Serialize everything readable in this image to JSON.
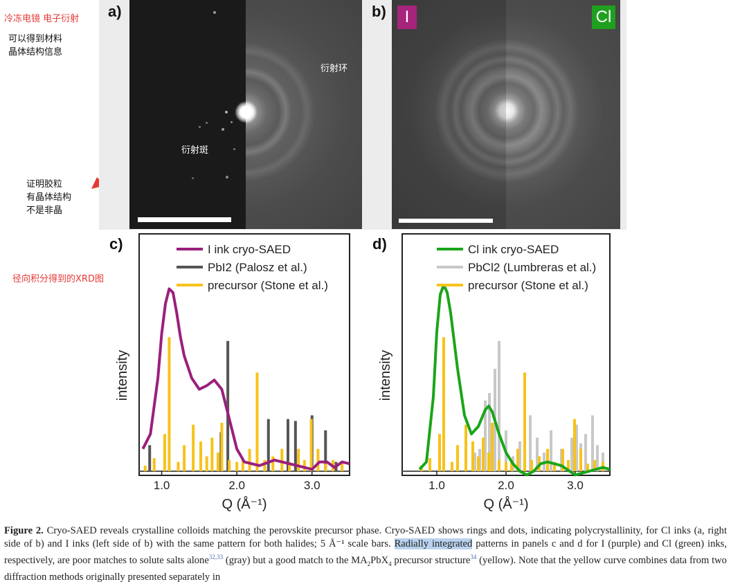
{
  "notes": {
    "cryo_title": "冷冻电镜 电子衍射",
    "crystal_info": [
      "可以得到材料",
      "晶体结构信息"
    ],
    "proof": [
      "证明胶粒",
      "有晶体结构",
      "不是非晶"
    ],
    "xrd_note": "径向积分得到的XRD图",
    "spots_label": "衍射斑",
    "rings_label": "衍射环"
  },
  "panels": {
    "a": "a)",
    "b": "b)",
    "c": "c)",
    "d": "d)",
    "b_badge_left": "I",
    "b_badge_right": "Cl"
  },
  "colors": {
    "purple": "#9b1f7c",
    "green": "#1aa51a",
    "yellow": "#f7c21a",
    "dark_gray": "#555555",
    "light_gray": "#c8c8c8",
    "badge_i": "#a7247c",
    "badge_cl": "#1fa01f",
    "annotation_red": "#e53935"
  },
  "chart_data": [
    {
      "type": "line",
      "panel": "c",
      "xlabel": "Q (Å⁻¹)",
      "ylabel": "intensity",
      "xlim": [
        0.7,
        3.5
      ],
      "ylim": [
        0,
        1
      ],
      "xticks": [
        "1.0",
        "2.0",
        "3.0"
      ],
      "legend_position": "top-right",
      "legend": [
        {
          "label": "I ink cryo-SAED",
          "color": "#9b1f7c"
        },
        {
          "label": "PbI2 (Palosz et al.)",
          "color": "#555555"
        },
        {
          "label": "precursor (Stone et al.)",
          "color": "#f7c21a"
        }
      ],
      "series": [
        {
          "name": "I ink cryo-SAED",
          "kind": "curve",
          "x": [
            0.75,
            0.85,
            0.95,
            1.0,
            1.05,
            1.1,
            1.15,
            1.2,
            1.25,
            1.3,
            1.4,
            1.5,
            1.6,
            1.7,
            1.8,
            1.9,
            2.0,
            2.1,
            2.3,
            2.5,
            2.7,
            2.9,
            3.0,
            3.1,
            3.2,
            3.3,
            3.4,
            3.5
          ],
          "y": [
            0.12,
            0.2,
            0.5,
            0.74,
            0.9,
            0.98,
            0.96,
            0.85,
            0.72,
            0.62,
            0.5,
            0.44,
            0.46,
            0.49,
            0.44,
            0.28,
            0.12,
            0.05,
            0.03,
            0.06,
            0.04,
            0.02,
            0.01,
            0.05,
            0.05,
            0.02,
            0.05,
            0.04
          ]
        },
        {
          "name": "PbI2 (Palosz et al.)",
          "kind": "sticks",
          "x": [
            0.84,
            1.79,
            1.88,
            2.42,
            2.68,
            2.78,
            3.0,
            3.18,
            3.32
          ],
          "y": [
            0.14,
            0.21,
            0.7,
            0.28,
            0.28,
            0.27,
            0.3,
            0.22,
            0.05
          ]
        },
        {
          "name": "precursor (Stone et al.)",
          "kind": "sticks",
          "x": [
            0.78,
            0.9,
            1.04,
            1.1,
            1.22,
            1.3,
            1.42,
            1.52,
            1.6,
            1.67,
            1.75,
            1.8,
            1.9,
            2.0,
            2.08,
            2.17,
            2.27,
            2.37,
            2.48,
            2.6,
            2.7,
            2.82,
            2.9,
            2.99,
            3.08,
            3.18,
            3.28,
            3.4
          ],
          "y": [
            0.03,
            0.07,
            0.2,
            0.72,
            0.05,
            0.14,
            0.25,
            0.16,
            0.08,
            0.18,
            0.1,
            0.26,
            0.06,
            0.05,
            0.06,
            0.12,
            0.53,
            0.06,
            0.08,
            0.12,
            0.05,
            0.12,
            0.06,
            0.28,
            0.12,
            0.04,
            0.06,
            0.05
          ]
        }
      ]
    },
    {
      "type": "line",
      "panel": "d",
      "xlabel": "Q (Å⁻¹)",
      "ylabel": "intensity",
      "xlim": [
        0.5,
        3.5
      ],
      "ylim": [
        0,
        1
      ],
      "xticks": [
        "1.0",
        "2.0",
        "3.0"
      ],
      "legend_position": "top-right",
      "legend": [
        {
          "label": "Cl ink cryo-SAED",
          "color": "#1aa51a"
        },
        {
          "label": "PbCl2 (Lumbreras et al.)",
          "color": "#c8c8c8"
        },
        {
          "label": "precursor (Stone et al.)",
          "color": "#f7c21a"
        }
      ],
      "series": [
        {
          "name": "Cl ink cryo-SAED",
          "kind": "curve",
          "x": [
            0.75,
            0.85,
            0.95,
            1.0,
            1.05,
            1.1,
            1.15,
            1.2,
            1.3,
            1.4,
            1.5,
            1.6,
            1.7,
            1.75,
            1.8,
            1.9,
            2.0,
            2.1,
            2.2,
            2.3,
            2.4,
            2.5,
            2.6,
            2.8,
            3.0,
            3.2,
            3.4,
            3.5
          ],
          "y": [
            0.01,
            0.05,
            0.4,
            0.75,
            0.95,
            1.0,
            0.96,
            0.85,
            0.55,
            0.3,
            0.2,
            0.24,
            0.33,
            0.35,
            0.32,
            0.2,
            0.1,
            0.04,
            0.0,
            -0.02,
            0.0,
            0.04,
            0.05,
            0.03,
            -0.02,
            0.0,
            0.02,
            0.01
          ]
        },
        {
          "name": "PbCl2 (Lumbreras et al.)",
          "kind": "sticks",
          "x": [
            1.55,
            1.62,
            1.7,
            1.76,
            1.84,
            1.9,
            2.0,
            2.1,
            2.2,
            2.35,
            2.45,
            2.55,
            2.65,
            2.8,
            2.95,
            3.02,
            3.08,
            3.15,
            3.25,
            3.32,
            3.4
          ],
          "y": [
            0.1,
            0.12,
            0.38,
            0.42,
            0.55,
            0.7,
            0.22,
            0.08,
            0.16,
            0.3,
            0.18,
            0.1,
            0.22,
            0.12,
            0.18,
            0.25,
            0.15,
            0.2,
            0.3,
            0.14,
            0.1
          ]
        },
        {
          "name": "precursor (Stone et al.)",
          "kind": "sticks",
          "x": [
            0.78,
            0.9,
            1.04,
            1.1,
            1.22,
            1.3,
            1.42,
            1.52,
            1.6,
            1.67,
            1.75,
            1.8,
            1.9,
            2.0,
            2.08,
            2.17,
            2.27,
            2.37,
            2.48,
            2.6,
            2.7,
            2.82,
            2.9,
            2.99,
            3.08,
            3.18,
            3.28,
            3.4
          ],
          "y": [
            0.03,
            0.07,
            0.2,
            0.72,
            0.05,
            0.14,
            0.25,
            0.16,
            0.08,
            0.18,
            0.1,
            0.26,
            0.06,
            0.05,
            0.06,
            0.12,
            0.53,
            0.06,
            0.08,
            0.12,
            0.05,
            0.12,
            0.06,
            0.28,
            0.12,
            0.04,
            0.06,
            0.05
          ]
        }
      ]
    }
  ],
  "caption": {
    "label": "Figure 2.",
    "text1": " Cryo-SAED reveals crystalline colloids matching the perovskite precursor phase. Cryo-SAED shows rings and dots, indicating polycrystallinity, for Cl inks (a, right side of b) and I inks (left side of b) with the same pattern for both halides; 5 Å⁻¹ scale bars. ",
    "highlight": "Radially integrated",
    "text2": " patterns in panels c and d for I (purple) and Cl (green) inks, respectively, are poor matches to solute salts alone",
    "sup1": "32,33",
    "text3": " (gray) but a good match to the MA",
    "text3b": "PbX",
    "text3c": " precursor structure",
    "sup2": "34",
    "text4": " (yellow). Note that the yellow curve combines data from two diffraction methods originally presented separately in",
    "sub1": "2",
    "sub2": "4"
  }
}
